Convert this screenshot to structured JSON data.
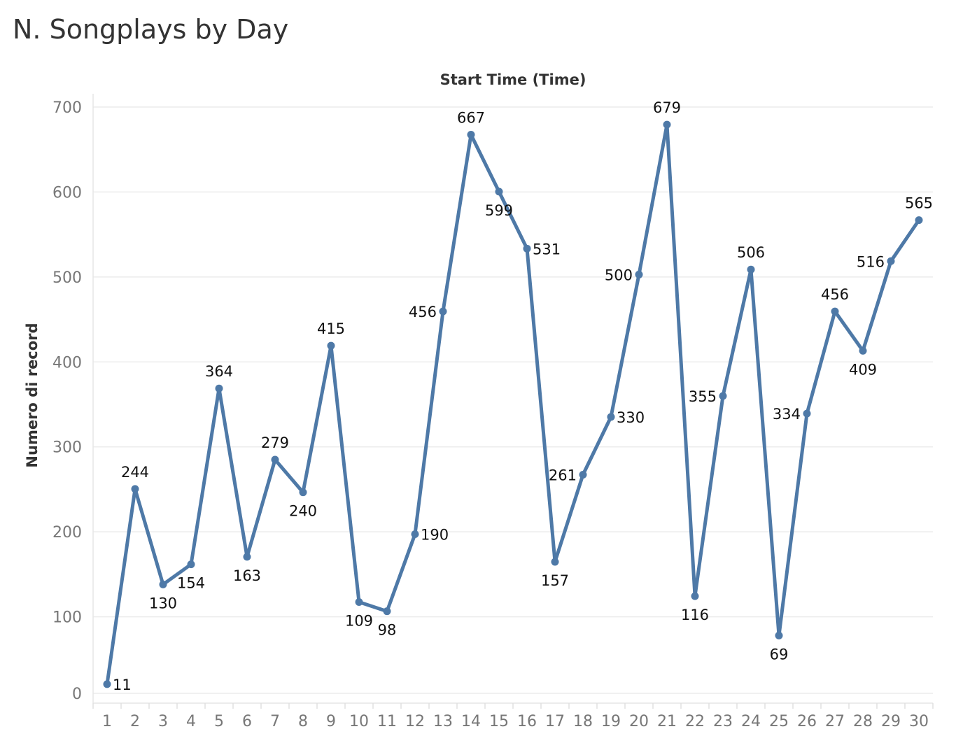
{
  "title": "N. Songplays by Day",
  "chart_data": {
    "type": "line",
    "title": "N. Songplays by Day",
    "xlabel": "Start Time (Time)",
    "ylabel": "Numero di record",
    "x": [
      1,
      2,
      3,
      4,
      5,
      6,
      7,
      8,
      9,
      10,
      11,
      12,
      13,
      14,
      15,
      16,
      17,
      18,
      19,
      20,
      21,
      22,
      23,
      24,
      25,
      26,
      27,
      28,
      29,
      30
    ],
    "values": [
      11,
      244,
      130,
      154,
      364,
      163,
      279,
      240,
      415,
      109,
      98,
      190,
      456,
      667,
      599,
      531,
      157,
      261,
      330,
      500,
      679,
      116,
      355,
      506,
      69,
      334,
      456,
      409,
      516,
      565
    ],
    "ylim": [
      0,
      700
    ],
    "yticks": [
      0,
      100,
      200,
      300,
      400,
      500,
      600,
      700
    ],
    "grid": true,
    "legend": "none",
    "color": "#4e79a7",
    "label_positions": [
      "right",
      "above",
      "below",
      "below",
      "above",
      "below",
      "above",
      "below",
      "above",
      "below",
      "below",
      "right",
      "left",
      "above",
      "below",
      "right",
      "below",
      "left",
      "right",
      "left",
      "above",
      "below",
      "left",
      "above",
      "below",
      "left",
      "above",
      "below",
      "left",
      "above"
    ]
  }
}
